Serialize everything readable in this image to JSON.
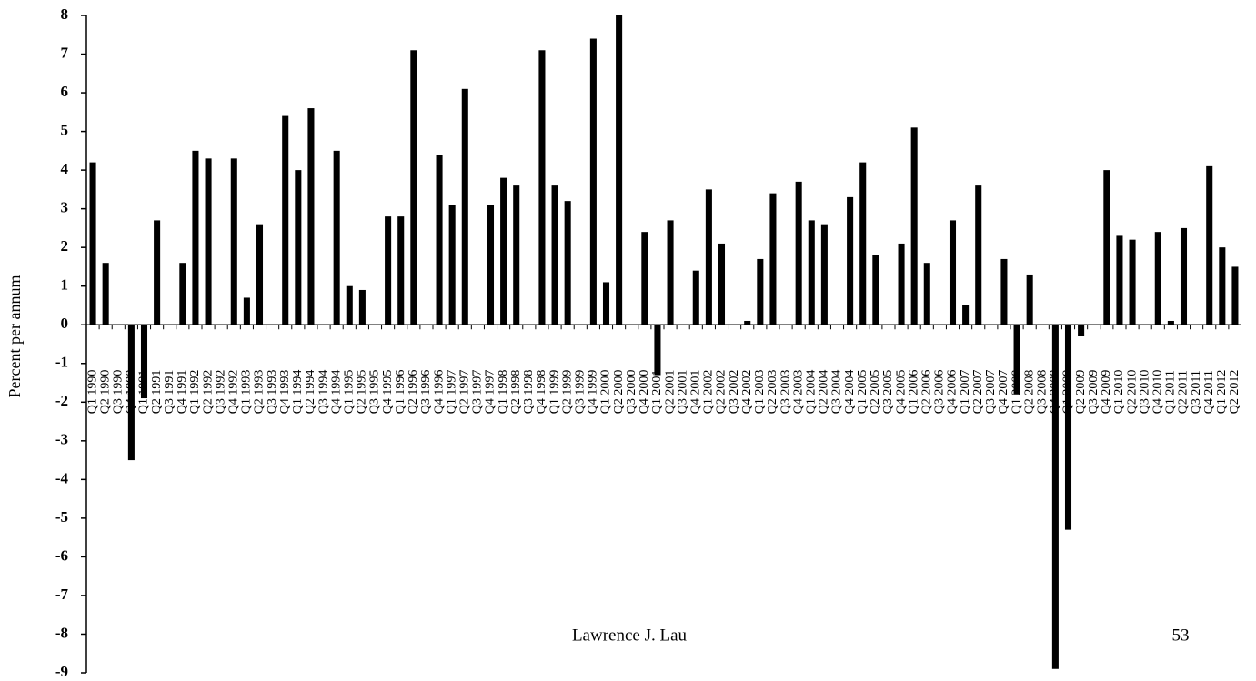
{
  "chart_data": {
    "type": "bar",
    "y_label": "Percent per annum",
    "footer_left": "Lawrence J. Lau",
    "footer_right": "53",
    "color": "#000000",
    "ylim": [
      -9,
      8
    ],
    "yticks": [
      -9,
      -8,
      -7,
      -6,
      -5,
      -4,
      -3,
      -2,
      -1,
      0,
      1,
      2,
      3,
      4,
      5,
      6,
      7,
      8
    ],
    "categories": [
      "Q1 1990",
      "Q2 1990",
      "Q3 1990",
      "Q4 1990",
      "Q1 1991",
      "Q2 1991",
      "Q3 1991",
      "Q4 1991",
      "Q1 1992",
      "Q2 1992",
      "Q3 1992",
      "Q4 1992",
      "Q1 1993",
      "Q2 1993",
      "Q3 1993",
      "Q4 1993",
      "Q1 1994",
      "Q2 1994",
      "Q3 1994",
      "Q4 1994",
      "Q1 1995",
      "Q2 1995",
      "Q3 1995",
      "Q4 1995",
      "Q1 1996",
      "Q2 1996",
      "Q3 1996",
      "Q4 1996",
      "Q1 1997",
      "Q2 1997",
      "Q3 1997",
      "Q4 1997",
      "Q1 1998",
      "Q2 1998",
      "Q3 1998",
      "Q4 1998",
      "Q1 1999",
      "Q2 1999",
      "Q3 1999",
      "Q4 1999",
      "Q1 2000",
      "Q2 2000",
      "Q3 2000",
      "Q4 2000",
      "Q1 2001",
      "Q2 2001",
      "Q3 2001",
      "Q4 2001",
      "Q1 2002",
      "Q2 2002",
      "Q3 2002",
      "Q4 2002",
      "Q1 2003",
      "Q2 2003",
      "Q3 2003",
      "Q4 2003",
      "Q1 2004",
      "Q2 2004",
      "Q3 2004",
      "Q4 2004",
      "Q1 2005",
      "Q2 2005",
      "Q3 2005",
      "Q4 2005",
      "Q1 2006",
      "Q2 2006",
      "Q3 2006",
      "Q4 2006",
      "Q1 2007",
      "Q2 2007",
      "Q3 2007",
      "Q4 2007",
      "Q1 2008",
      "Q2 2008",
      "Q3 2008",
      "Q4 2008",
      "Q1 2009",
      "Q2 2009",
      "Q3 2009",
      "Q4 2009",
      "Q1 2010",
      "Q2 2010",
      "Q3 2010",
      "Q4 2010",
      "Q1 2011",
      "Q2 2011",
      "Q3 2011",
      "Q4 2011",
      "Q1 2012",
      "Q2 2012"
    ],
    "values": [
      4.2,
      1.6,
      0,
      -3.5,
      -1.9,
      2.7,
      0,
      1.6,
      4.5,
      4.3,
      0,
      4.3,
      0.7,
      2.6,
      0,
      5.4,
      4.0,
      5.6,
      0,
      4.5,
      1.0,
      0.9,
      0,
      2.8,
      2.8,
      7.1,
      0,
      4.4,
      3.1,
      6.1,
      0,
      3.1,
      3.8,
      3.6,
      0,
      7.1,
      3.6,
      3.2,
      0,
      7.4,
      1.1,
      8.0,
      0,
      2.4,
      -1.3,
      2.7,
      0,
      1.4,
      3.5,
      2.1,
      0,
      0.1,
      1.7,
      3.4,
      0,
      3.7,
      2.7,
      2.6,
      0,
      3.3,
      4.2,
      1.8,
      0,
      2.1,
      5.1,
      1.6,
      0,
      2.7,
      0.5,
      3.6,
      0,
      1.7,
      -1.8,
      1.3,
      0,
      -8.9,
      -5.3,
      -0.3,
      0,
      4.0,
      2.3,
      2.2,
      0,
      2.4,
      0.1,
      2.5,
      0,
      4.1,
      2.0,
      1.5
    ]
  }
}
